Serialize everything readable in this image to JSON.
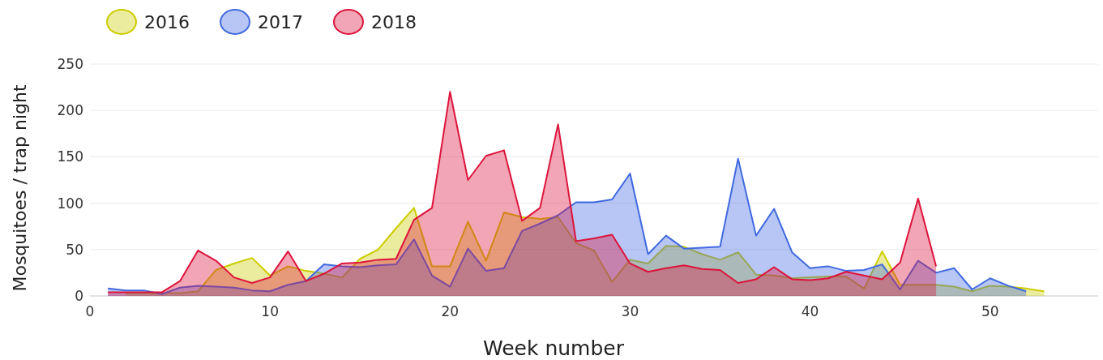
{
  "chart_data": {
    "type": "area",
    "xlabel": "Week number",
    "ylabel": "Mosquitoes / trap night",
    "xlim": [
      0,
      56
    ],
    "ylim": [
      0,
      250
    ],
    "xticks": [
      0,
      10,
      20,
      30,
      40,
      50
    ],
    "yticks": [
      0,
      50,
      100,
      150,
      200,
      250
    ],
    "grid": "y",
    "legend": "top left",
    "series": [
      {
        "name": "2016",
        "color": "#cccc00",
        "x": [
          2,
          3,
          4,
          5,
          6,
          7,
          8,
          9,
          10,
          11,
          12,
          13,
          14,
          15,
          16,
          17,
          18,
          19,
          20,
          21,
          22,
          23,
          24,
          25,
          26,
          27,
          28,
          29,
          30,
          31,
          32,
          33,
          34,
          35,
          36,
          37,
          38,
          39,
          40,
          41,
          42,
          43,
          44,
          45,
          46,
          47,
          48,
          49,
          50,
          51,
          52,
          53
        ],
        "values": [
          3,
          3,
          3,
          3,
          5,
          28,
          35,
          41,
          22,
          32,
          27,
          24,
          20,
          40,
          50,
          73,
          95,
          32,
          32,
          80,
          38,
          90,
          85,
          83,
          85,
          57,
          49,
          15,
          39,
          35,
          54,
          53,
          45,
          39,
          47,
          23,
          22,
          19,
          20,
          21,
          21,
          8,
          48,
          12,
          12,
          12,
          10,
          5,
          11,
          10,
          8,
          5
        ]
      },
      {
        "name": "2017",
        "color": "#4169e1",
        "x": [
          1,
          2,
          3,
          4,
          5,
          6,
          7,
          8,
          9,
          10,
          11,
          12,
          13,
          14,
          15,
          16,
          17,
          18,
          19,
          20,
          21,
          22,
          23,
          24,
          25,
          26,
          27,
          28,
          29,
          30,
          31,
          32,
          33,
          34,
          35,
          36,
          37,
          38,
          39,
          40,
          41,
          42,
          43,
          44,
          45,
          46,
          47,
          48,
          49,
          50,
          51,
          52
        ],
        "values": [
          8,
          6,
          6,
          2,
          9,
          11,
          10,
          9,
          6,
          5,
          12,
          16,
          34,
          32,
          31,
          33,
          34,
          61,
          22,
          10,
          51,
          27,
          30,
          70,
          78,
          87,
          101,
          101,
          104,
          132,
          45,
          65,
          51,
          52,
          53,
          148,
          65,
          94,
          47,
          30,
          32,
          27,
          28,
          34,
          7,
          38,
          25,
          30,
          7,
          19,
          11,
          5
        ]
      },
      {
        "name": "2018",
        "color": "#dc143c",
        "x": [
          1,
          2,
          3,
          4,
          5,
          6,
          7,
          8,
          9,
          10,
          11,
          12,
          13,
          14,
          15,
          16,
          17,
          18,
          19,
          20,
          21,
          22,
          23,
          24,
          25,
          26,
          27,
          28,
          29,
          30,
          31,
          32,
          33,
          34,
          35,
          36,
          37,
          38,
          39,
          40,
          41,
          42,
          43,
          44,
          45,
          46,
          47
        ],
        "values": [
          4,
          4,
          4,
          4,
          16,
          49,
          38,
          20,
          14,
          20,
          48,
          16,
          24,
          35,
          36,
          39,
          40,
          82,
          95,
          220,
          125,
          151,
          157,
          81,
          95,
          185,
          59,
          62,
          66,
          35,
          26,
          30,
          33,
          29,
          28,
          14,
          18,
          31,
          18,
          17,
          19,
          26,
          22,
          18,
          36,
          105,
          32
        ]
      }
    ]
  }
}
